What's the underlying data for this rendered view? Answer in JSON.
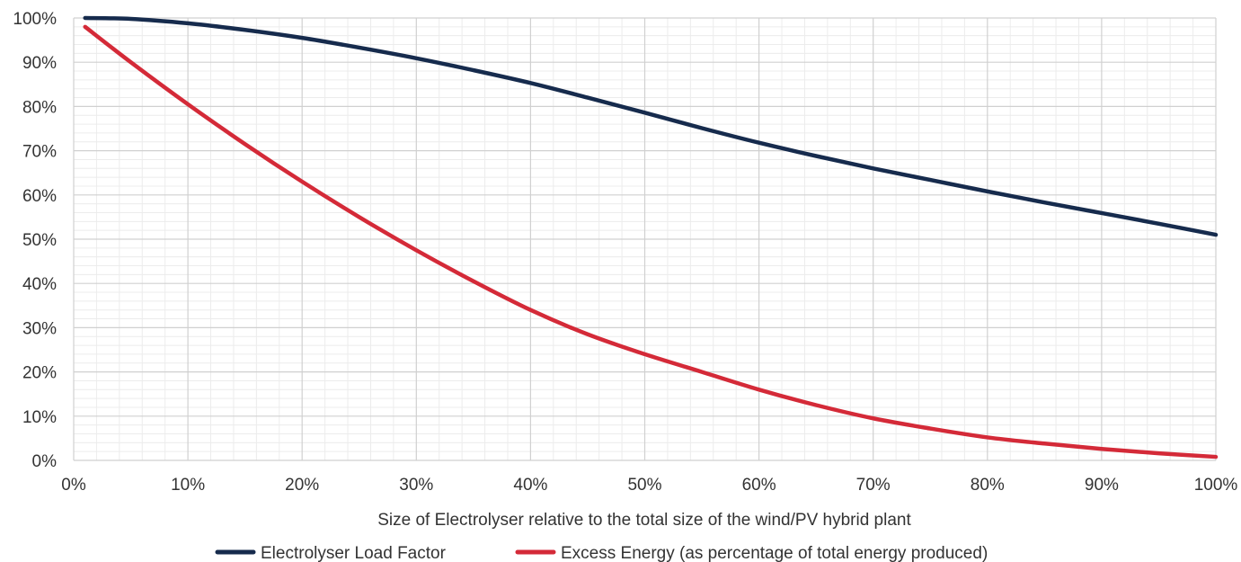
{
  "chart_data": {
    "type": "line",
    "title": "",
    "xlabel": "Size of Electrolyser relative to the total size of the wind/PV hybrid plant",
    "ylabel": "",
    "xlim": [
      0,
      100
    ],
    "ylim": [
      0,
      100
    ],
    "x_ticks": [
      "0%",
      "10%",
      "20%",
      "30%",
      "40%",
      "50%",
      "60%",
      "70%",
      "80%",
      "90%",
      "100%"
    ],
    "y_ticks": [
      "0%",
      "10%",
      "20%",
      "30%",
      "40%",
      "50%",
      "60%",
      "70%",
      "80%",
      "90%",
      "100%"
    ],
    "grid": true,
    "legend_position": "bottom-center",
    "x": [
      1,
      5,
      10,
      15,
      20,
      25,
      30,
      35,
      40,
      45,
      50,
      55,
      60,
      65,
      70,
      75,
      80,
      85,
      90,
      95,
      100
    ],
    "series": [
      {
        "name": "Electrolyser Load Factor",
        "color": "#162b4d",
        "values": [
          100,
          99.8,
          98.8,
          97.3,
          95.5,
          93.3,
          90.9,
          88.2,
          85.3,
          82.0,
          78.6,
          75.1,
          71.8,
          68.8,
          66.0,
          63.4,
          60.8,
          58.3,
          55.9,
          53.5,
          51.0
        ]
      },
      {
        "name": "Excess Energy (as percentage of total energy produced)",
        "color": "#d42a38",
        "values": [
          98,
          90,
          80.5,
          71.5,
          63,
          55,
          47.5,
          40.5,
          34,
          28.5,
          24,
          20,
          16,
          12.5,
          9.5,
          7.2,
          5.2,
          3.8,
          2.6,
          1.6,
          0.8
        ]
      }
    ]
  }
}
